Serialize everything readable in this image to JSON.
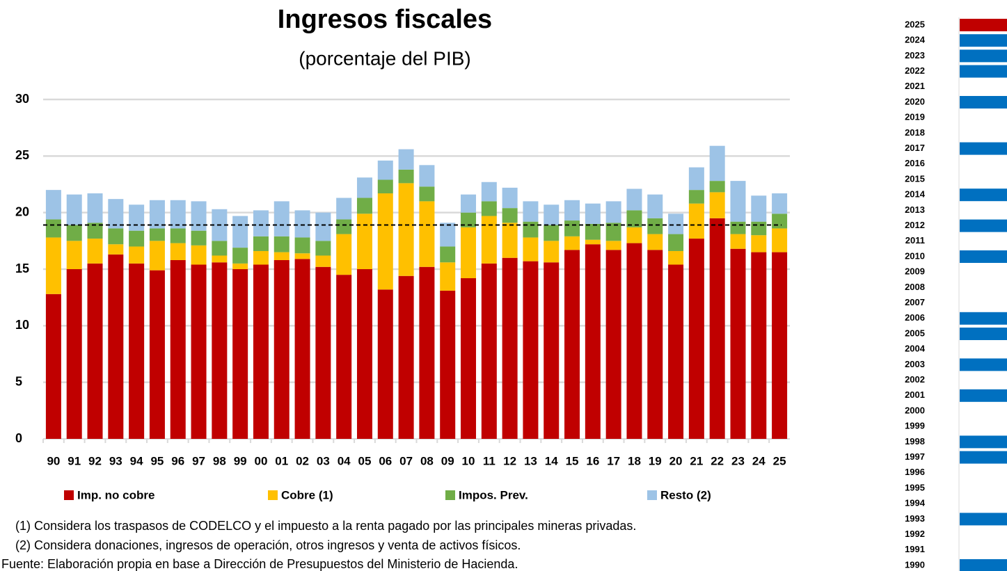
{
  "chart_data": {
    "type": "stacked_bar",
    "title": "Ingresos fiscales",
    "subtitle": "(porcentaje del PIB)",
    "categories": [
      "90",
      "91",
      "92",
      "93",
      "94",
      "95",
      "96",
      "97",
      "98",
      "99",
      "00",
      "01",
      "02",
      "03",
      "04",
      "05",
      "06",
      "07",
      "08",
      "09",
      "10",
      "11",
      "12",
      "13",
      "14",
      "15",
      "16",
      "17",
      "18",
      "19",
      "20",
      "21",
      "22",
      "23",
      "24",
      "25"
    ],
    "series": [
      {
        "name": "Imp. no cobre",
        "color": "#c00000",
        "values": [
          12.8,
          15.0,
          15.5,
          16.3,
          15.5,
          14.9,
          15.8,
          15.4,
          15.6,
          15.0,
          15.4,
          15.8,
          15.9,
          15.2,
          14.5,
          15.0,
          13.2,
          14.4,
          15.2,
          13.1,
          14.2,
          15.5,
          16.0,
          15.7,
          15.6,
          16.7,
          17.2,
          16.7,
          17.3,
          16.7,
          15.4,
          17.7,
          19.5,
          16.8,
          16.5,
          16.5
        ]
      },
      {
        "name": "Cobre (1)",
        "color": "#ffc000",
        "values": [
          5.0,
          2.5,
          2.2,
          0.9,
          1.5,
          2.6,
          1.5,
          1.7,
          0.6,
          0.5,
          1.2,
          0.7,
          0.5,
          1.0,
          3.6,
          4.9,
          8.5,
          8.2,
          5.8,
          2.5,
          4.5,
          4.2,
          3.1,
          2.1,
          1.9,
          1.2,
          0.4,
          0.8,
          1.4,
          1.4,
          1.2,
          3.1,
          2.3,
          1.3,
          1.5,
          2.1
        ]
      },
      {
        "name": "Impos. Prev.",
        "color": "#70ad47",
        "values": [
          1.6,
          1.4,
          1.4,
          1.4,
          1.4,
          1.1,
          1.3,
          1.3,
          1.3,
          1.4,
          1.3,
          1.4,
          1.4,
          1.3,
          1.3,
          1.4,
          1.2,
          1.2,
          1.3,
          1.4,
          1.3,
          1.3,
          1.3,
          1.4,
          1.4,
          1.4,
          1.4,
          1.6,
          1.5,
          1.4,
          1.5,
          1.2,
          1.0,
          1.1,
          1.2,
          1.3
        ]
      },
      {
        "name": "Resto (2)",
        "color": "#9dc3e6",
        "values": [
          2.6,
          2.7,
          2.6,
          2.6,
          2.3,
          2.5,
          2.5,
          2.6,
          2.8,
          2.8,
          2.3,
          3.1,
          2.4,
          2.5,
          1.9,
          1.8,
          1.7,
          1.8,
          1.9,
          2.1,
          1.6,
          1.7,
          1.8,
          1.8,
          1.8,
          1.8,
          1.8,
          1.9,
          1.9,
          2.1,
          1.8,
          2.0,
          3.1,
          3.6,
          2.3,
          1.8
        ]
      }
    ],
    "ylim": [
      0,
      30
    ],
    "yticks": [
      0,
      5,
      10,
      15,
      20,
      25,
      30
    ],
    "grid": true,
    "reference_line": 18.9,
    "notes": [
      "(1)   Considera los traspasos de CODELCO y el impuesto a la renta pagado por las principales mineras privadas.",
      "(2)   Considera donaciones, ingresos de operación, otros ingresos y venta de activos físicos.",
      "Fuente: Elaboración propia en base a Dirección de Presupuestos del Ministerio de Hacienda."
    ]
  },
  "year_panel": {
    "years": [
      "2025",
      "2024",
      "2023",
      "2022",
      "2021",
      "2020",
      "2019",
      "2018",
      "2017",
      "2016",
      "2015",
      "2014",
      "2013",
      "2012",
      "2011",
      "2010",
      "2009",
      "2008",
      "2007",
      "2006",
      "2005",
      "2004",
      "2003",
      "2002",
      "2001",
      "2000",
      "1999",
      "1998",
      "1997",
      "1996",
      "1995",
      "1994",
      "1993",
      "1992",
      "1991",
      "1990"
    ],
    "colors": [
      "#c00000",
      "#0070c0",
      "#0070c0",
      "#0070c0",
      null,
      "#0070c0",
      null,
      null,
      "#0070c0",
      null,
      null,
      "#0070c0",
      null,
      "#0070c0",
      null,
      "#0070c0",
      null,
      null,
      null,
      "#0070c0",
      "#0070c0",
      null,
      "#0070c0",
      null,
      "#0070c0",
      null,
      null,
      "#0070c0",
      "#0070c0",
      null,
      null,
      null,
      "#0070c0",
      null,
      null,
      "#0070c0"
    ]
  }
}
